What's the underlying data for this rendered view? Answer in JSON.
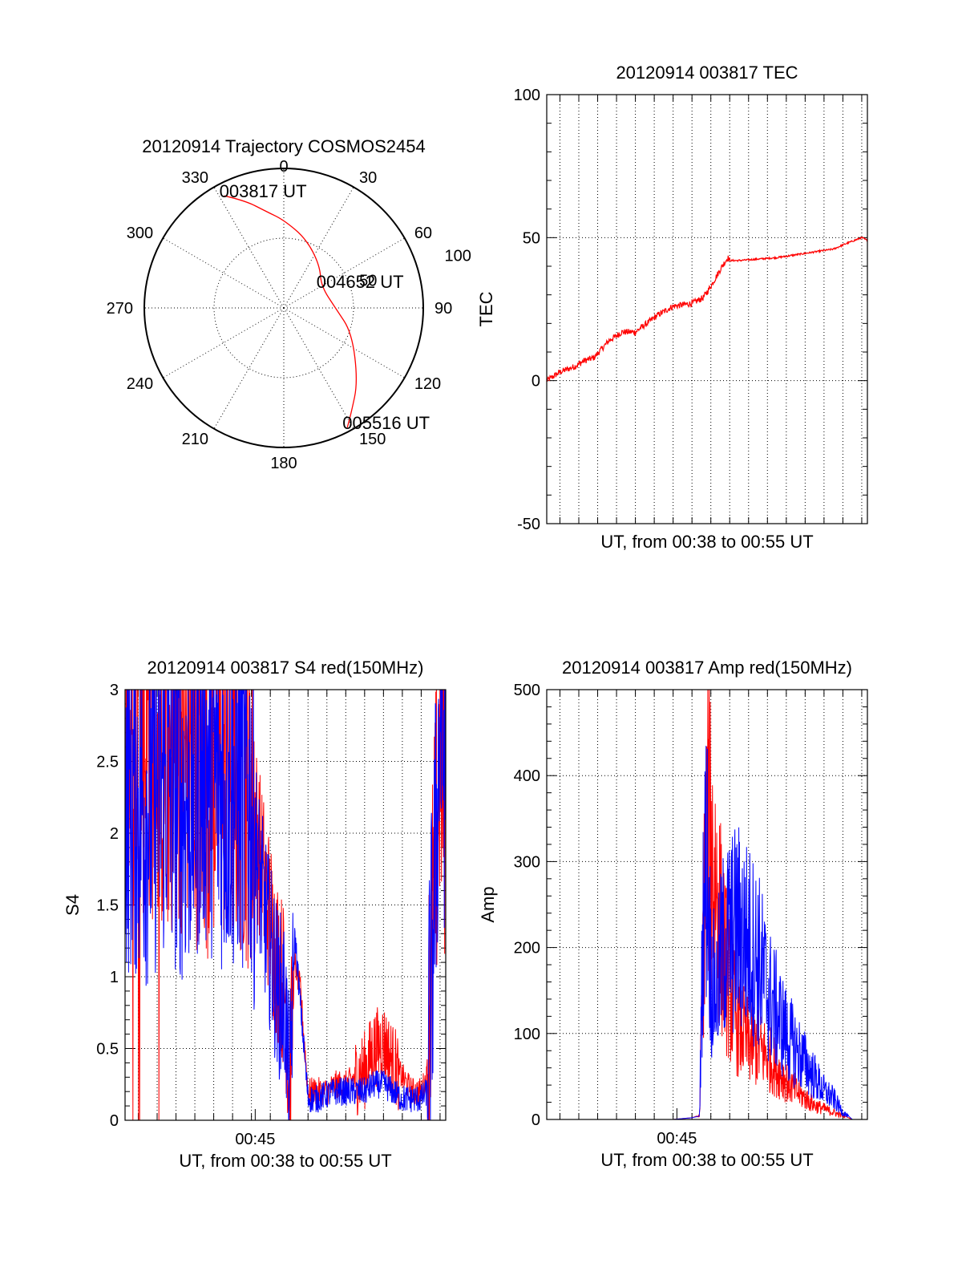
{
  "colors": {
    "red": "#ff0000",
    "blue": "#0000ff",
    "axis": "#000000"
  },
  "chart_data": [
    {
      "type": "polar",
      "title": "20120914 Trajectory COSMOS2454",
      "angle_labels": [
        "0",
        "30",
        "60",
        "90",
        "120",
        "150",
        "180",
        "210",
        "240",
        "270",
        "300",
        "330"
      ],
      "angles_deg": [
        0,
        30,
        60,
        90,
        120,
        150,
        180,
        210,
        240,
        270,
        300,
        330
      ],
      "ring_labels": [
        "50",
        "100"
      ],
      "rings": [
        50,
        100
      ],
      "rmax": 100,
      "annotations": [
        {
          "text": "003817 UT",
          "az": 332,
          "r": 91
        },
        {
          "text": "004652 UT",
          "az": 60,
          "r": 31
        },
        {
          "text": "005516 UT",
          "az": 152,
          "r": 97
        }
      ],
      "trajectory": {
        "color": "red",
        "points": [
          [
            332,
            91
          ],
          [
            340,
            82
          ],
          [
            350,
            70
          ],
          [
            0,
            63
          ],
          [
            18,
            52
          ],
          [
            40,
            40
          ],
          [
            60,
            31
          ],
          [
            90,
            37
          ],
          [
            110,
            52
          ],
          [
            135,
            75
          ],
          [
            147,
            89
          ],
          [
            152,
            97
          ]
        ]
      }
    },
    {
      "type": "line",
      "title": "20120914 003817 TEC",
      "xlabel": "UT, from 00:38 to 00:55 UT",
      "ylabel": "TEC",
      "ylim": [
        -50,
        100
      ],
      "yticks": [
        "-50",
        "0",
        "50",
        "100"
      ],
      "xlim": [
        38.3,
        55.3
      ],
      "xgrid_minutes": [
        39,
        40,
        41,
        42,
        43,
        44,
        45,
        46,
        47,
        48,
        49,
        50,
        51,
        52,
        53,
        54,
        55
      ],
      "series": [
        {
          "color": "red",
          "x": [
            38.3,
            39.0,
            39.8,
            40.3,
            40.8,
            41.6,
            42.3,
            43.0,
            44.2,
            45.0,
            46.0,
            46.6,
            47.0,
            47.6,
            47.9,
            48.0,
            48.5,
            49.5,
            50.5,
            51.5,
            52.5,
            53.5,
            54.2,
            54.6,
            55.0,
            55.3
          ],
          "y": [
            0,
            3,
            5,
            7,
            8,
            14,
            17,
            17,
            23,
            26,
            27,
            29,
            33,
            40,
            43,
            42,
            42,
            42.5,
            43,
            44,
            45,
            46,
            48,
            49,
            50,
            49
          ]
        }
      ]
    },
    {
      "type": "line",
      "title": "20120914 003817 S4 red(150MHz)",
      "xlabel": "UT, from 00:38 to 00:55 UT",
      "ylabel": "S4",
      "ylim": [
        0,
        3
      ],
      "yticks": [
        "0",
        "0.5",
        "1",
        "1.5",
        "2",
        "2.5",
        "3"
      ],
      "xlim": [
        38.3,
        55.3
      ],
      "xtick_label": "00:45",
      "xtick_value": 45.2,
      "series": [
        {
          "color": "red",
          "x": [
            38.3,
            39.5,
            40.5,
            41.5,
            42.5,
            43.5,
            44.5,
            45.0,
            45.5,
            46.0,
            46.4,
            46.8,
            47.0,
            47.3,
            47.6,
            48.0,
            48.5,
            49.0,
            49.5,
            50.0,
            50.5,
            51.0,
            51.5,
            52.0,
            52.5,
            53.0,
            53.5,
            54.0,
            54.3,
            54.6,
            55.0,
            55.3
          ],
          "y": [
            2.6,
            2.7,
            2.5,
            2.6,
            2.4,
            2.5,
            2.4,
            2.3,
            1.8,
            1.4,
            1.1,
            0.9,
            0.2,
            1.1,
            0.9,
            0.2,
            0.2,
            0.2,
            0.25,
            0.25,
            0.3,
            0.35,
            0.5,
            0.55,
            0.4,
            0.3,
            0.2,
            0.2,
            0.3,
            1.3,
            2.6,
            2.2
          ]
        },
        {
          "color": "blue",
          "x": [
            38.3,
            39.5,
            40.5,
            41.5,
            42.5,
            43.5,
            44.5,
            45.0,
            45.5,
            46.0,
            46.4,
            46.8,
            47.0,
            47.3,
            47.6,
            48.0,
            48.5,
            49.0,
            49.5,
            50.0,
            50.5,
            51.0,
            51.5,
            52.0,
            52.5,
            53.0,
            53.5,
            54.0,
            54.3,
            54.6,
            55.0,
            55.3
          ],
          "y": [
            2.3,
            2.2,
            2.4,
            2.2,
            2.5,
            2.3,
            2.3,
            2.2,
            1.6,
            1.2,
            0.9,
            0.8,
            0.15,
            1.3,
            0.8,
            0.15,
            0.15,
            0.18,
            0.2,
            0.2,
            0.2,
            0.2,
            0.25,
            0.25,
            0.2,
            0.15,
            0.15,
            0.15,
            0.2,
            1.2,
            2.8,
            2.4
          ]
        }
      ]
    },
    {
      "type": "line",
      "title": "20120914 003817 Amp red(150MHz)",
      "xlabel": "UT, from 00:38 to 00:55 UT",
      "ylabel": "Amp",
      "ylim": [
        0,
        500
      ],
      "yticks": [
        "0",
        "100",
        "200",
        "300",
        "400",
        "500"
      ],
      "xlim": [
        38.3,
        55.3
      ],
      "xtick_label": "00:45",
      "xtick_value": 45.2,
      "series": [
        {
          "color": "red",
          "x": [
            38.3,
            42.0,
            45.0,
            46.0,
            46.4,
            46.6,
            46.8,
            47.0,
            47.3,
            47.6,
            48.0,
            48.5,
            49.0,
            49.5,
            50.0,
            50.5,
            51.0,
            51.5,
            52.0,
            52.5,
            53.0,
            53.5,
            54.0,
            54.5,
            55.3
          ],
          "y": [
            0,
            0,
            0,
            2,
            5,
            250,
            420,
            380,
            330,
            250,
            180,
            130,
            110,
            100,
            90,
            70,
            55,
            40,
            30,
            20,
            15,
            10,
            5,
            0,
            0
          ]
        },
        {
          "color": "blue",
          "x": [
            38.3,
            42.0,
            45.0,
            46.0,
            46.4,
            46.6,
            46.8,
            47.0,
            47.3,
            47.6,
            48.0,
            48.5,
            49.0,
            49.5,
            50.0,
            50.5,
            51.0,
            51.5,
            52.0,
            52.5,
            53.0,
            53.5,
            54.0,
            54.5,
            55.3
          ],
          "y": [
            0,
            0,
            0,
            2,
            4,
            300,
            380,
            200,
            180,
            240,
            260,
            270,
            250,
            230,
            180,
            150,
            120,
            100,
            80,
            60,
            40,
            30,
            10,
            0,
            0
          ]
        }
      ]
    }
  ]
}
